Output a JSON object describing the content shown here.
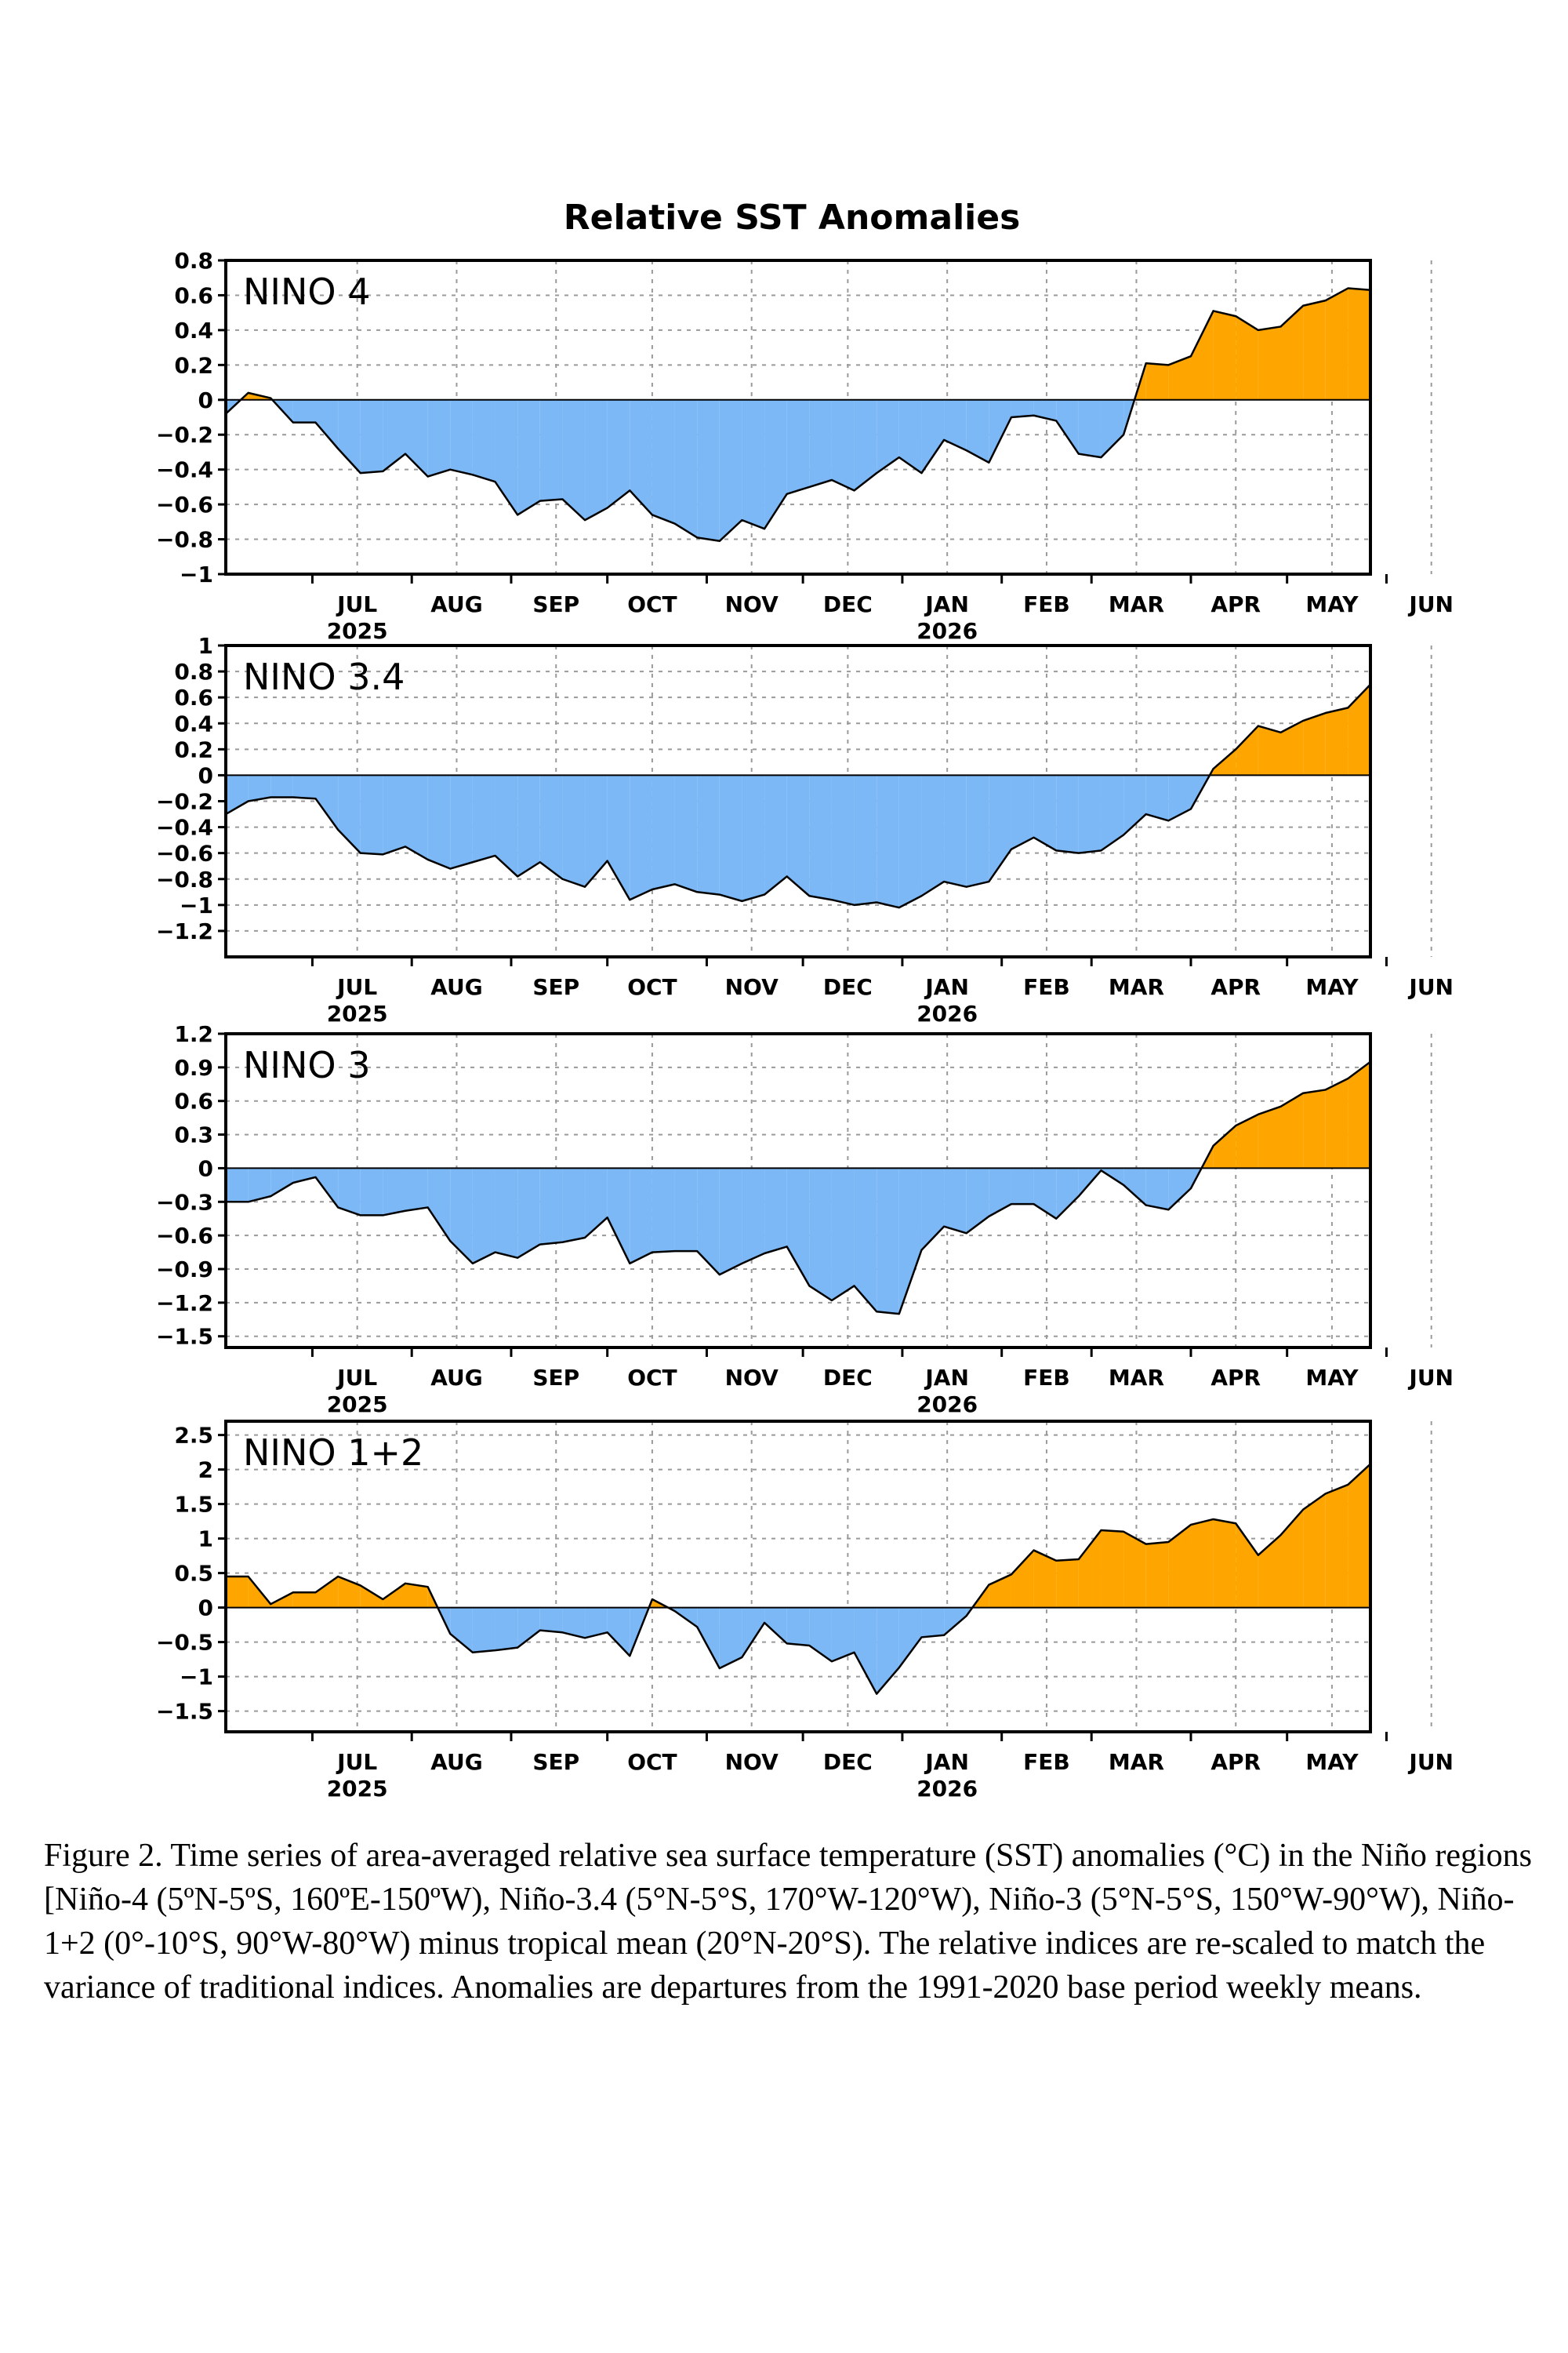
{
  "figure_title": "Relative SST Anomalies",
  "caption": "Figure 2. Time series of area-averaged relative sea surface temperature (SST) anomalies (°C) in the Niño regions [Niño-4 (5ºN-5ºS, 160ºE-150ºW), Niño-3.4 (5°N-5°S, 170°W-120°W), Niño-3 (5°N-5°S, 150°W-90°W), Niño-1+2 (0°-10°S, 90°W-80°W) minus tropical mean (20°N-20°S). The relative indices are re-scaled to match the variance of traditional indices. Anomalies are departures from the 1991-2020 base period weekly means.",
  "colors": {
    "positive": "#FFA500",
    "negative": "#7CB8F5",
    "line": "#000000",
    "grid": "#9a9a9a"
  },
  "month_labels": [
    "JUL",
    "AUG",
    "SEP",
    "OCT",
    "NOV",
    "DEC",
    "JAN",
    "FEB",
    "MAR",
    "APR",
    "MAY",
    "JUN"
  ],
  "year_labels": [
    {
      "month": "JUL",
      "year": "2025"
    },
    {
      "month": "JAN",
      "year": "2026"
    }
  ],
  "chart_data": [
    {
      "type": "area",
      "label": "NINO 4",
      "ylim": [
        -1,
        0.8
      ],
      "yticks": [
        0.8,
        0.6,
        0.4,
        0.2,
        0,
        -0.2,
        -0.4,
        -0.6,
        -0.8,
        -1
      ],
      "ytick_labels": [
        "0.8",
        "0.6",
        "0.4",
        "0.2",
        "0",
        "−0.2",
        "−0.4",
        "−0.6",
        "−0.8",
        "−1"
      ],
      "grid": true,
      "x_start": "2025-06-04",
      "x_step_days": 7,
      "values": [
        -0.08,
        0.04,
        0.01,
        -0.13,
        -0.13,
        -0.28,
        -0.42,
        -0.41,
        -0.31,
        -0.44,
        -0.4,
        -0.43,
        -0.47,
        -0.66,
        -0.58,
        -0.57,
        -0.69,
        -0.62,
        -0.52,
        -0.66,
        -0.71,
        -0.79,
        -0.81,
        -0.69,
        -0.74,
        -0.54,
        -0.5,
        -0.46,
        -0.52,
        -0.42,
        -0.33,
        -0.42,
        -0.23,
        -0.29,
        -0.36,
        -0.1,
        -0.09,
        -0.12,
        -0.31,
        -0.33,
        -0.2,
        0.21,
        0.2,
        0.25,
        0.51,
        0.48,
        0.4,
        0.42,
        0.54,
        0.57,
        0.64,
        0.63
      ]
    },
    {
      "type": "area",
      "label": "NINO 3.4",
      "ylim": [
        -1.4,
        1
      ],
      "yticks": [
        1,
        0.8,
        0.6,
        0.4,
        0.2,
        0,
        -0.2,
        -0.4,
        -0.6,
        -0.8,
        -1,
        -1.2
      ],
      "ytick_labels": [
        "1",
        "0.8",
        "0.6",
        "0.4",
        "0.2",
        "0",
        "−0.2",
        "−0.4",
        "−0.6",
        "−0.8",
        "−1",
        "−1.2"
      ],
      "grid": true,
      "x_start": "2025-06-04",
      "x_step_days": 7,
      "values": [
        -0.3,
        -0.2,
        -0.17,
        -0.17,
        -0.18,
        -0.42,
        -0.6,
        -0.61,
        -0.55,
        -0.65,
        -0.72,
        -0.67,
        -0.62,
        -0.78,
        -0.67,
        -0.8,
        -0.86,
        -0.66,
        -0.96,
        -0.88,
        -0.84,
        -0.9,
        -0.92,
        -0.97,
        -0.92,
        -0.78,
        -0.93,
        -0.96,
        -1.0,
        -0.98,
        -1.02,
        -0.93,
        -0.82,
        -0.86,
        -0.82,
        -0.57,
        -0.48,
        -0.58,
        -0.6,
        -0.58,
        -0.46,
        -0.3,
        -0.35,
        -0.26,
        0.05,
        0.2,
        0.38,
        0.33,
        0.42,
        0.48,
        0.52,
        0.7
      ]
    },
    {
      "type": "area",
      "label": "NINO 3",
      "ylim": [
        -1.6,
        1.2
      ],
      "yticks": [
        1.2,
        0.9,
        0.6,
        0.3,
        0,
        -0.3,
        -0.6,
        -0.9,
        -1.2,
        -1.5
      ],
      "ytick_labels": [
        "1.2",
        "0.9",
        "0.6",
        "0.3",
        "0",
        "−0.3",
        "−0.6",
        "−0.9",
        "−1.2",
        "−1.5"
      ],
      "grid": true,
      "x_start": "2025-06-04",
      "x_step_days": 7,
      "values": [
        -0.3,
        -0.3,
        -0.25,
        -0.13,
        -0.08,
        -0.35,
        -0.42,
        -0.42,
        -0.38,
        -0.35,
        -0.65,
        -0.85,
        -0.75,
        -0.8,
        -0.68,
        -0.66,
        -0.62,
        -0.44,
        -0.85,
        -0.75,
        -0.74,
        -0.74,
        -0.95,
        -0.85,
        -0.76,
        -0.7,
        -1.05,
        -1.18,
        -1.05,
        -1.28,
        -1.3,
        -0.73,
        -0.52,
        -0.58,
        -0.43,
        -0.32,
        -0.32,
        -0.45,
        -0.25,
        -0.02,
        -0.15,
        -0.33,
        -0.37,
        -0.18,
        0.2,
        0.38,
        0.48,
        0.55,
        0.67,
        0.7,
        0.8,
        0.95
      ]
    },
    {
      "type": "area",
      "label": "NINO 1+2",
      "ylim": [
        -1.8,
        2.7
      ],
      "yticks": [
        2.5,
        2,
        1.5,
        1,
        0.5,
        0,
        -0.5,
        -1,
        -1.5
      ],
      "ytick_labels": [
        "2.5",
        "2",
        "1.5",
        "1",
        "0.5",
        "0",
        "−0.5",
        "−1",
        "−1.5"
      ],
      "grid": true,
      "x_start": "2025-06-04",
      "x_step_days": 7,
      "values": [
        0.45,
        0.45,
        0.05,
        0.22,
        0.22,
        0.45,
        0.32,
        0.12,
        0.35,
        0.3,
        -0.38,
        -0.65,
        -0.62,
        -0.58,
        -0.33,
        -0.36,
        -0.44,
        -0.36,
        -0.7,
        0.12,
        -0.05,
        -0.28,
        -0.88,
        -0.72,
        -0.22,
        -0.52,
        -0.55,
        -0.78,
        -0.65,
        -1.25,
        -0.87,
        -0.43,
        -0.4,
        -0.12,
        0.33,
        0.48,
        0.83,
        0.68,
        0.7,
        1.12,
        1.1,
        0.92,
        0.95,
        1.2,
        1.28,
        1.22,
        0.76,
        1.05,
        1.42,
        1.65,
        1.78,
        2.08
      ]
    }
  ]
}
